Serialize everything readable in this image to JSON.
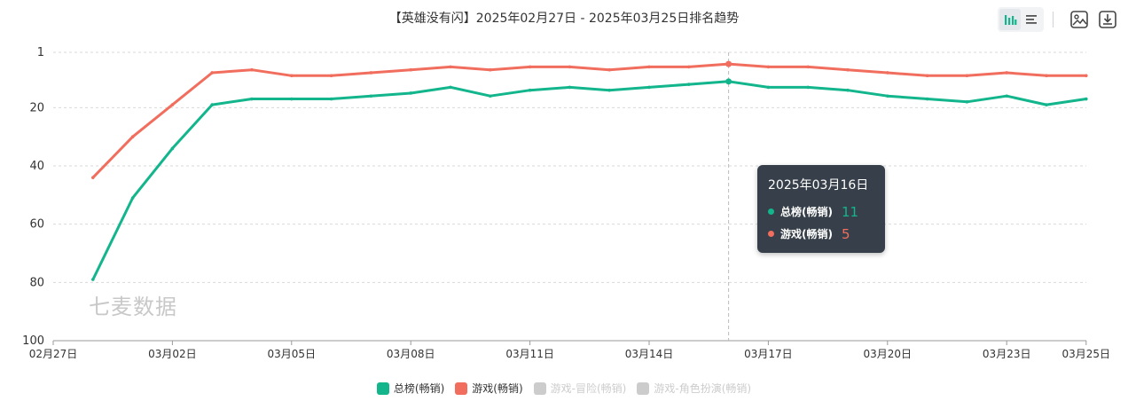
{
  "page": {
    "title": "【英雄没有闪】2025年02月27日 - 2025年03月25日排名趋势",
    "watermark": "七麦数据"
  },
  "toolbar": {
    "buttons": [
      {
        "icon": "bar-chart-icon",
        "active": true
      },
      {
        "icon": "list-icon",
        "active": false
      },
      {
        "icon": "image-download-icon",
        "active": false
      },
      {
        "icon": "download-icon",
        "active": false
      }
    ]
  },
  "tooltip": {
    "date": "2025年03月16日",
    "rows": [
      {
        "name": "总榜(畅销)",
        "value": "11",
        "color": "#12b58c"
      },
      {
        "name": "游戏(畅销)",
        "value": "5",
        "color": "#f16e5e"
      }
    ]
  },
  "legend": [
    {
      "name": "总榜(畅销)",
      "color": "#12b58c",
      "active": true
    },
    {
      "name": "游戏(畅销)",
      "color": "#f16e5e",
      "active": true
    },
    {
      "name": "游戏-冒险(畅销)",
      "color": "#cccccc",
      "active": false
    },
    {
      "name": "游戏-角色扮演(畅销)",
      "color": "#cccccc",
      "active": false
    }
  ],
  "chart_data": {
    "type": "line",
    "title": "【英雄没有闪】2025年02月27日 - 2025年03月25日排名趋势",
    "y_inverted": true,
    "ylim": [
      1,
      100
    ],
    "yticks": [
      "1",
      "20",
      "40",
      "60",
      "80",
      "100"
    ],
    "ytick_values": [
      1,
      20,
      40,
      60,
      80,
      100
    ],
    "xtick_labels": [
      "02月27日",
      "03月02日",
      "03月05日",
      "03月08日",
      "03月11日",
      "03月14日",
      "03月17日",
      "03月20日",
      "03月23日",
      "03月25日"
    ],
    "x_dates": [
      "02-28",
      "03-01",
      "03-02",
      "03-03",
      "03-04",
      "03-05",
      "03-06",
      "03-07",
      "03-08",
      "03-09",
      "03-10",
      "03-11",
      "03-12",
      "03-13",
      "03-14",
      "03-15",
      "03-16",
      "03-17",
      "03-18",
      "03-19",
      "03-20",
      "03-21",
      "03-22",
      "03-23",
      "03-24",
      "03-25"
    ],
    "series": [
      {
        "name": "总榜(畅销)",
        "color": "#12b58c",
        "values": [
          79,
          51,
          34,
          19,
          17,
          17,
          17,
          16,
          15,
          13,
          16,
          14,
          13,
          14,
          13,
          12,
          11,
          13,
          13,
          14,
          16,
          17,
          18,
          16,
          19,
          17
        ]
      },
      {
        "name": "游戏(畅销)",
        "color": "#f16e5e",
        "values": [
          44,
          30,
          19,
          8,
          7,
          9,
          9,
          8,
          7,
          6,
          7,
          6,
          6,
          7,
          6,
          6,
          5,
          6,
          6,
          7,
          8,
          9,
          9,
          8,
          9,
          9
        ]
      }
    ],
    "highlight_date": "03-16",
    "grid": true
  },
  "colors": {
    "grid": "#d9d9d9",
    "axis_text": "#333333",
    "crosshair": "#bbbbbb"
  }
}
